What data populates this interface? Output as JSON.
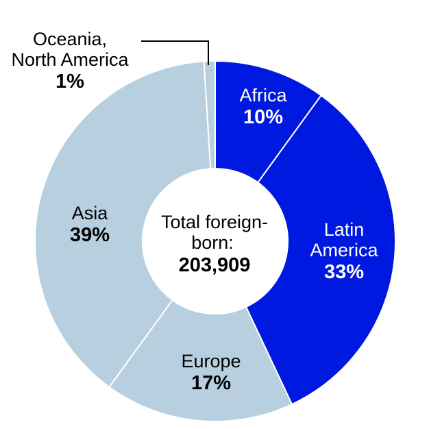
{
  "chart_data": {
    "type": "pie",
    "slices": [
      {
        "label": [
          "Africa"
        ],
        "percent_label": "10%",
        "value": 10,
        "color": "#0019e0",
        "text_color": "#ffffff"
      },
      {
        "label": [
          "Latin",
          "America"
        ],
        "percent_label": "33%",
        "value": 33,
        "color": "#0019e0",
        "text_color": "#ffffff"
      },
      {
        "label": [
          "Europe"
        ],
        "percent_label": "17%",
        "value": 17,
        "color": "#b7cfdf",
        "text_color": "#000000"
      },
      {
        "label": [
          "Asia"
        ],
        "percent_label": "39%",
        "value": 39,
        "color": "#b7cfdf",
        "text_color": "#000000"
      },
      {
        "label": [
          "Oceania,",
          "North America"
        ],
        "percent_label": "1%",
        "value": 1,
        "color": "#b7cfdf",
        "text_color": "#000000"
      }
    ],
    "center": {
      "line1": "Total foreign-",
      "line2": "born:",
      "total": "203,909"
    }
  }
}
